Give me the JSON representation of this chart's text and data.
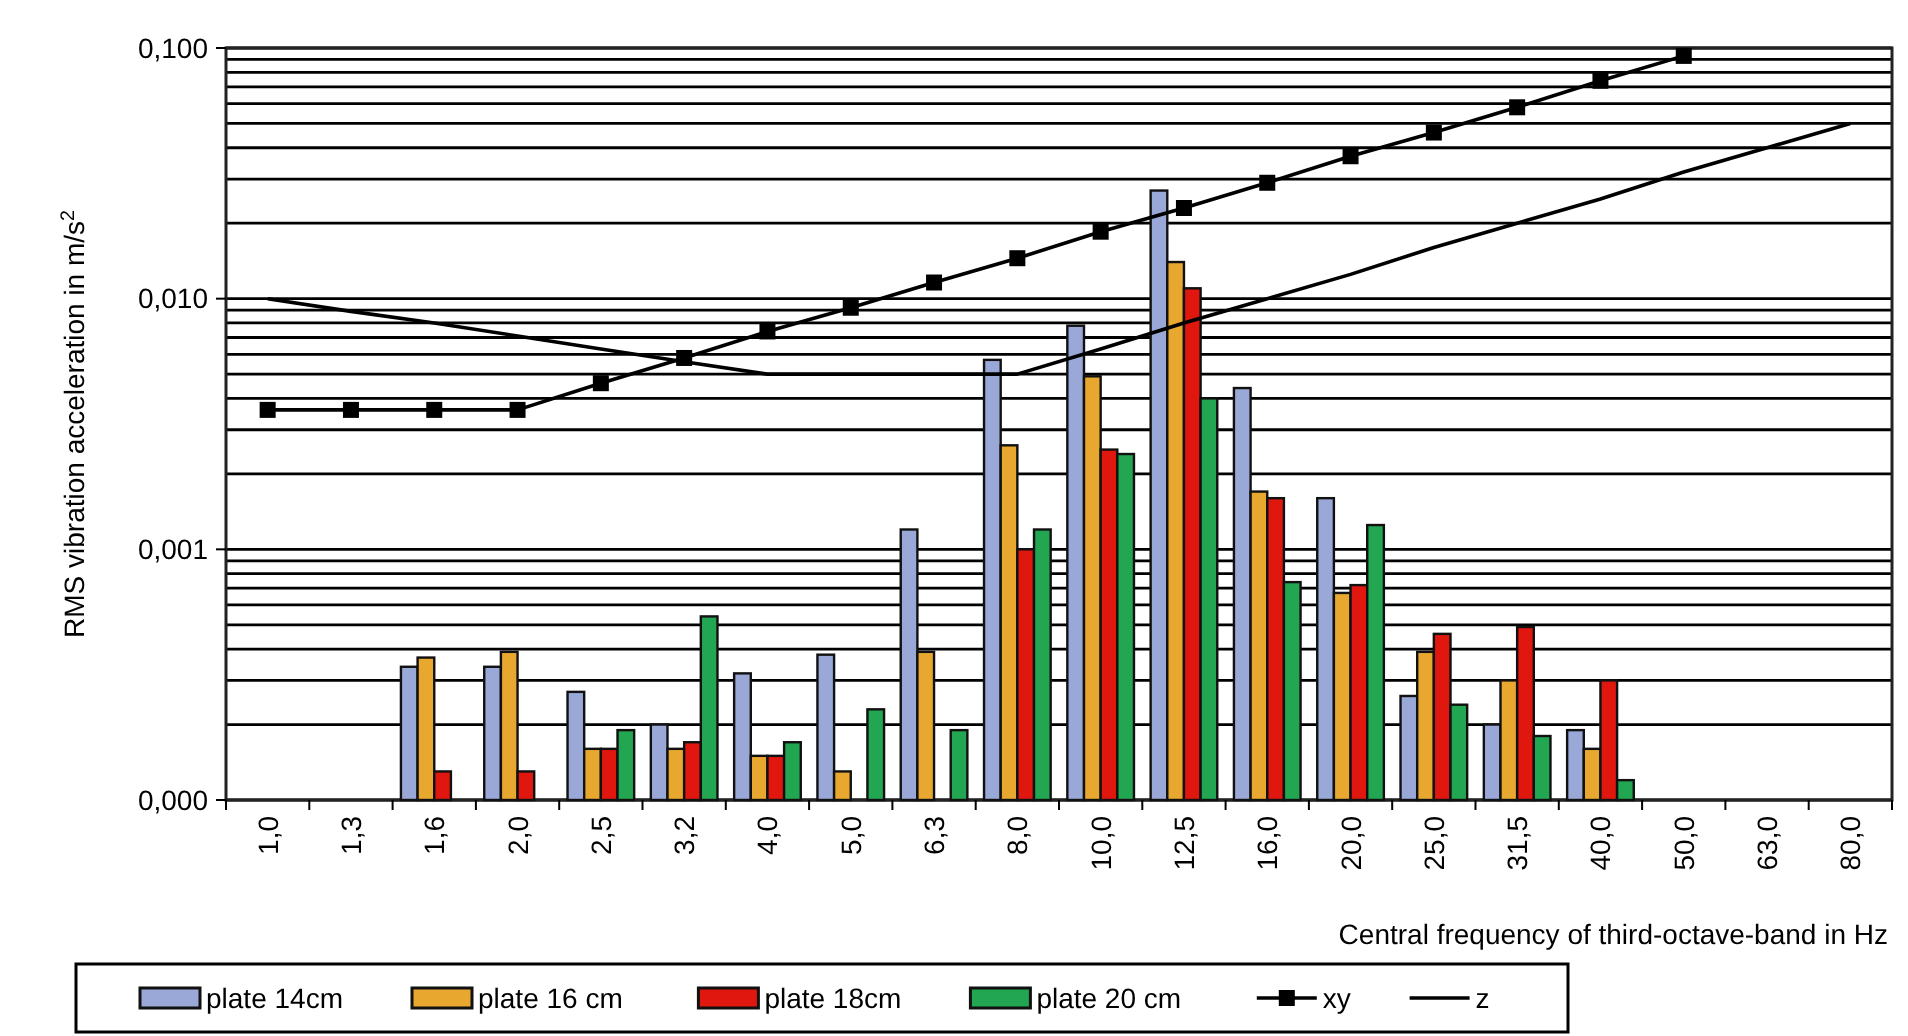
{
  "chart_data": {
    "type": "bar",
    "xlabel": "Central frequency of third-octave-band in Hz",
    "ylabel": "RMS vibration acceleration in m/s$^{2}$",
    "categories": [
      "1,0",
      "1,3",
      "1,6",
      "2,0",
      "2,5",
      "3,2",
      "4,0",
      "5,0",
      "6,3",
      "8,0",
      "10,0",
      "12,5",
      "16,0",
      "20,0",
      "25,0",
      "31,5",
      "40,0",
      "50,0",
      "63,0",
      "80,0"
    ],
    "log": true,
    "ylim": [
      0.0001,
      0.1
    ],
    "yticks": [
      {
        "value": 0.0001,
        "label": "0,000"
      },
      {
        "value": 0.001,
        "label": "0,001"
      },
      {
        "value": 0.01,
        "label": "0,010"
      },
      {
        "value": 0.1,
        "label": "0,100"
      }
    ],
    "grid": "y",
    "legend": "bottom",
    "series": [
      {
        "name": "plate 14cm",
        "color": "#9aa8d8",
        "values": [
          null,
          null,
          0.00034,
          0.00034,
          0.00027,
          0.0002,
          0.00032,
          0.00038,
          0.0012,
          0.0057,
          0.0078,
          0.027,
          0.0044,
          0.0016,
          0.00026,
          0.0002,
          0.00019,
          null,
          null,
          null
        ]
      },
      {
        "name": "plate 16 cm",
        "color": "#e8a830",
        "values": [
          null,
          null,
          0.00037,
          0.00039,
          0.00016,
          0.00016,
          0.00015,
          0.00013,
          0.00039,
          0.0026,
          0.0049,
          0.014,
          0.0017,
          0.00067,
          0.00039,
          0.0003,
          0.00016,
          null,
          null,
          null
        ]
      },
      {
        "name": "plate 18cm",
        "color": "#e0170f",
        "values": [
          null,
          null,
          0.00013,
          0.00013,
          0.00016,
          0.00017,
          0.00015,
          null,
          null,
          0.001,
          0.0025,
          0.011,
          0.0016,
          0.00072,
          0.00046,
          0.00049,
          0.0003,
          null,
          null,
          null
        ]
      },
      {
        "name": "plate 20 cm",
        "color": "#22a652",
        "values": [
          null,
          null,
          null,
          null,
          0.00019,
          0.00054,
          0.00017,
          0.00023,
          0.00019,
          0.0012,
          0.0024,
          0.004,
          0.00074,
          0.00125,
          0.00024,
          0.00018,
          0.00012,
          null,
          null,
          null
        ]
      },
      {
        "name": "xy",
        "type": "line",
        "color": "#000000",
        "marker": "square",
        "values": [
          0.0036,
          0.0036,
          0.0036,
          0.0036,
          0.0046,
          0.0058,
          0.0074,
          0.0092,
          0.0116,
          0.0145,
          0.0185,
          0.023,
          0.029,
          0.037,
          0.046,
          0.058,
          0.074,
          0.093,
          null,
          null
        ]
      },
      {
        "name": "z",
        "type": "line",
        "color": "#000000",
        "marker": "none",
        "values": [
          0.01,
          0.0089,
          0.008,
          0.0071,
          0.0063,
          0.0056,
          0.005,
          0.005,
          0.005,
          0.005,
          0.0063,
          0.008,
          0.01,
          0.0125,
          0.016,
          0.02,
          0.025,
          0.032,
          0.04,
          0.05
        ]
      }
    ]
  }
}
